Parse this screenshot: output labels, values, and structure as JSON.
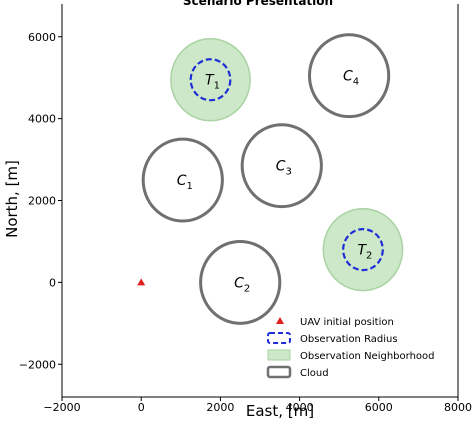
{
  "chart_data": {
    "type": "scatter",
    "title": "Scenario Presentation",
    "xlabel": "East, [m]",
    "ylabel": "North, [m]",
    "xlim": [
      -2000,
      8000
    ],
    "ylim": [
      -2800,
      6800
    ],
    "xticks": [
      -2000,
      0,
      2000,
      4000,
      6000,
      8000
    ],
    "yticks": [
      -2000,
      0,
      2000,
      4000,
      6000
    ],
    "grid": false,
    "legend_position": "bottom-right",
    "uav": {
      "x": 0,
      "y": 0,
      "color": "#e02020"
    },
    "clouds": [
      {
        "label": "C",
        "sub": "1",
        "x": 1050,
        "y": 2500,
        "r": 1000
      },
      {
        "label": "C",
        "sub": "2",
        "x": 2500,
        "y": 0,
        "r": 1000
      },
      {
        "label": "C",
        "sub": "3",
        "x": 3550,
        "y": 2850,
        "r": 1000
      },
      {
        "label": "C",
        "sub": "4",
        "x": 5250,
        "y": 5050,
        "r": 1000
      }
    ],
    "targets": [
      {
        "label": "T",
        "sub": "1",
        "x": 1750,
        "y": 4950,
        "neighborhood_r": 1000,
        "observation_r": 500
      },
      {
        "label": "T",
        "sub": "2",
        "x": 5600,
        "y": 800,
        "neighborhood_r": 1000,
        "observation_r": 500
      }
    ],
    "colors": {
      "cloud": "#707070",
      "neighborhood_fill": "#cde8c9",
      "neighborhood_edge": "#a9d3a2",
      "observation": "#1f2fd6",
      "uav": "#e02020"
    },
    "legend": [
      {
        "key": "uav",
        "label": "UAV initial position"
      },
      {
        "key": "observation",
        "label": "Observation Radius"
      },
      {
        "key": "neighborhood",
        "label": "Observation Neighborhood"
      },
      {
        "key": "cloud",
        "label": "Cloud"
      }
    ]
  }
}
